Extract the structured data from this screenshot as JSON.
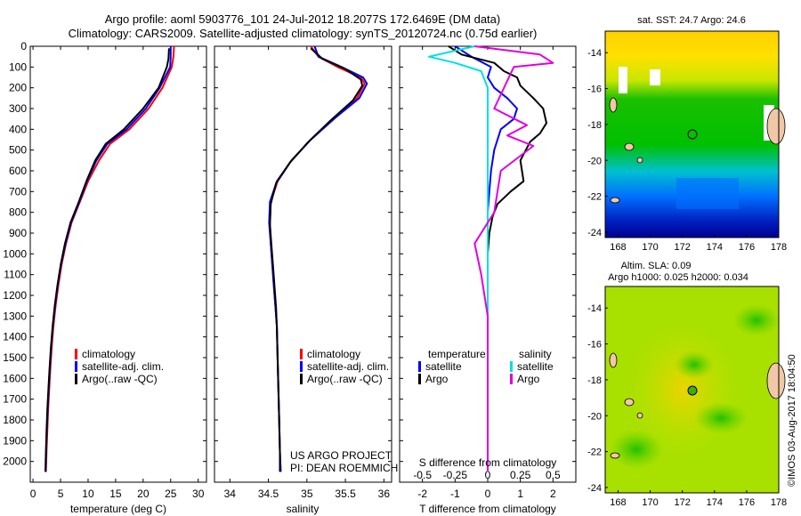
{
  "header": {
    "line1": "Argo profile: aoml 5903776_101 24-Jul-2012 18.2077S 172.6469E (DM data)",
    "line2": "Climatology: CARS2009. Satellite-adjusted climatology: synTS_20120724.nc (0.75d earlier)"
  },
  "colors": {
    "climatology": "#ff0000",
    "satellite": "#0000ff",
    "argo": "#000000",
    "argo_salinity": "#e000e0",
    "sat_salinity": "#00e0e0"
  },
  "chart_data": [
    {
      "id": "temperature",
      "type": "line",
      "xlabel": "temperature (deg C)",
      "ylabel": "",
      "xlim": [
        -0.5,
        31.5
      ],
      "ylim": [
        2100,
        0
      ],
      "xticks": [
        "0",
        "5",
        "10",
        "15",
        "20",
        "25",
        "30"
      ],
      "yticks": [
        "0",
        "100",
        "200",
        "300",
        "400",
        "500",
        "600",
        "700",
        "800",
        "900",
        "1000",
        "1100",
        "1200",
        "1300",
        "1400",
        "1500",
        "1600",
        "1700",
        "1800",
        "1900",
        "2000"
      ],
      "legend": [
        "climatology",
        "satellite-adj. clim.",
        "Argo(..raw -QC)"
      ],
      "series": [
        {
          "name": "climatology",
          "color": "#ff0000",
          "points": [
            [
              25.6,
              0
            ],
            [
              25.5,
              50
            ],
            [
              25.2,
              100
            ],
            [
              23.5,
              200
            ],
            [
              21,
              300
            ],
            [
              17.5,
              400
            ],
            [
              14,
              470
            ],
            [
              12,
              550
            ],
            [
              10,
              650
            ],
            [
              8.5,
              750
            ],
            [
              7,
              850
            ],
            [
              6,
              950
            ],
            [
              5.2,
              1050
            ],
            [
              4.6,
              1150
            ],
            [
              4.1,
              1250
            ],
            [
              3.7,
              1350
            ],
            [
              3.4,
              1450
            ],
            [
              3.15,
              1550
            ],
            [
              2.95,
              1650
            ],
            [
              2.75,
              1750
            ],
            [
              2.6,
              1850
            ],
            [
              2.45,
              1950
            ],
            [
              2.35,
              2050
            ]
          ]
        },
        {
          "name": "satellite",
          "color": "#0000ff",
          "points": [
            [
              25,
              0
            ],
            [
              25,
              50
            ],
            [
              24.9,
              100
            ],
            [
              23,
              200
            ],
            [
              20.5,
              300
            ],
            [
              17,
              400
            ],
            [
              13.5,
              470
            ],
            [
              11.5,
              550
            ],
            [
              9.8,
              650
            ],
            [
              8.4,
              750
            ],
            [
              6.9,
              850
            ],
            [
              5.9,
              950
            ],
            [
              5.1,
              1050
            ],
            [
              4.5,
              1150
            ],
            [
              4,
              1250
            ],
            [
              3.6,
              1350
            ],
            [
              3.3,
              1450
            ],
            [
              3.05,
              1550
            ],
            [
              2.85,
              1650
            ],
            [
              2.65,
              1750
            ],
            [
              2.5,
              1850
            ],
            [
              2.4,
              1950
            ],
            [
              2.3,
              2050
            ]
          ]
        },
        {
          "name": "Argo",
          "color": "#000000",
          "points": [
            [
              24.7,
              10
            ],
            [
              24.6,
              60
            ],
            [
              24.3,
              100
            ],
            [
              22.8,
              200
            ],
            [
              20,
              300
            ],
            [
              16.5,
              400
            ],
            [
              13.2,
              470
            ],
            [
              11.3,
              550
            ],
            [
              9.7,
              650
            ],
            [
              8.3,
              750
            ],
            [
              6.8,
              850
            ],
            [
              5.8,
              950
            ],
            [
              5.05,
              1050
            ],
            [
              4.45,
              1150
            ],
            [
              3.95,
              1250
            ],
            [
              3.55,
              1350
            ],
            [
              3.25,
              1450
            ],
            [
              3,
              1550
            ],
            [
              2.8,
              1650
            ],
            [
              2.6,
              1750
            ],
            [
              2.45,
              1850
            ],
            [
              2.35,
              1950
            ],
            [
              2.25,
              2050
            ]
          ]
        }
      ]
    },
    {
      "id": "salinity",
      "type": "line",
      "xlabel": "salinity",
      "ylabel": "",
      "xlim": [
        33.8,
        36.1
      ],
      "ylim": [
        2100,
        0
      ],
      "xticks": [
        "34",
        "34.5",
        "35",
        "35.5",
        "36"
      ],
      "legend": [
        "climatology",
        "satellite-adj. clim.",
        "Argo(..raw -QC)"
      ],
      "series": [
        {
          "name": "climatology",
          "color": "#ff0000",
          "points": [
            [
              35.05,
              0
            ],
            [
              35.15,
              50
            ],
            [
              35.4,
              100
            ],
            [
              35.7,
              150
            ],
            [
              35.75,
              180
            ],
            [
              35.65,
              250
            ],
            [
              35.35,
              350
            ],
            [
              35.05,
              450
            ],
            [
              34.8,
              550
            ],
            [
              34.62,
              650
            ],
            [
              34.53,
              750
            ],
            [
              34.52,
              850
            ],
            [
              34.53,
              950
            ],
            [
              34.55,
              1050
            ],
            [
              34.57,
              1150
            ],
            [
              34.59,
              1250
            ],
            [
              34.61,
              1350
            ],
            [
              34.62,
              1500
            ],
            [
              34.63,
              1650
            ],
            [
              34.64,
              1800
            ],
            [
              34.65,
              1950
            ],
            [
              34.66,
              2050
            ]
          ]
        },
        {
          "name": "satellite",
          "color": "#0000ff",
          "points": [
            [
              35.1,
              0
            ],
            [
              35.15,
              50
            ],
            [
              35.45,
              100
            ],
            [
              35.73,
              150
            ],
            [
              35.78,
              180
            ],
            [
              35.68,
              250
            ],
            [
              35.35,
              350
            ],
            [
              35.05,
              450
            ],
            [
              34.8,
              550
            ],
            [
              34.61,
              650
            ],
            [
              34.52,
              750
            ],
            [
              34.51,
              850
            ],
            [
              34.53,
              950
            ],
            [
              34.55,
              1050
            ],
            [
              34.57,
              1150
            ],
            [
              34.59,
              1250
            ],
            [
              34.61,
              1350
            ],
            [
              34.62,
              1500
            ],
            [
              34.63,
              1650
            ],
            [
              34.64,
              1800
            ],
            [
              34.65,
              1950
            ],
            [
              34.66,
              2050
            ]
          ]
        },
        {
          "name": "Argo",
          "color": "#000000",
          "points": [
            [
              35.05,
              10
            ],
            [
              35.2,
              60
            ],
            [
              35.5,
              110
            ],
            [
              35.7,
              160
            ],
            [
              35.72,
              190
            ],
            [
              35.6,
              260
            ],
            [
              35.3,
              360
            ],
            [
              35.02,
              460
            ],
            [
              34.78,
              560
            ],
            [
              34.6,
              660
            ],
            [
              34.53,
              760
            ],
            [
              34.52,
              860
            ],
            [
              34.54,
              960
            ],
            [
              34.56,
              1060
            ],
            [
              34.58,
              1160
            ],
            [
              34.6,
              1260
            ],
            [
              34.61,
              1360
            ],
            [
              34.62,
              1500
            ],
            [
              34.63,
              1650
            ],
            [
              34.64,
              1800
            ],
            [
              34.65,
              1950
            ],
            [
              34.65,
              2050
            ]
          ]
        }
      ]
    },
    {
      "id": "difference",
      "type": "line",
      "xlabel": "T difference from climatology",
      "top_axis_label": "S difference from climatology",
      "xlim": [
        -2.7,
        2.7
      ],
      "ylim": [
        2100,
        0
      ],
      "xticks": [
        "-2",
        "-1",
        "0",
        "1",
        "2"
      ],
      "top_ticks": [
        "-0.5",
        "-0.25",
        "0",
        "0.25",
        "0.5"
      ],
      "legend_titles": [
        "temperature",
        "salinity"
      ],
      "legend": [
        "satellite",
        "Argo",
        "satellite",
        "Argo"
      ],
      "series": [
        {
          "name": "T satellite",
          "color": "#0000ff",
          "points": [
            [
              -1,
              0
            ],
            [
              -0.5,
              50
            ],
            [
              0.1,
              100
            ],
            [
              0,
              150
            ],
            [
              0.2,
              200
            ],
            [
              0.6,
              250
            ],
            [
              0.9,
              300
            ],
            [
              0.8,
              350
            ],
            [
              0.4,
              400
            ],
            [
              0.2,
              500
            ],
            [
              0.1,
              600
            ],
            [
              0.05,
              700
            ],
            [
              0,
              800
            ],
            [
              0,
              900
            ],
            [
              0,
              1000
            ],
            [
              0,
              1200
            ],
            [
              0,
              1400
            ],
            [
              0,
              1600
            ],
            [
              0,
              2050
            ]
          ]
        },
        {
          "name": "T Argo",
          "color": "#000000",
          "points": [
            [
              -1.2,
              0
            ],
            [
              -0.8,
              40
            ],
            [
              0.2,
              80
            ],
            [
              0.5,
              120
            ],
            [
              0.9,
              150
            ],
            [
              1,
              190
            ],
            [
              1.4,
              250
            ],
            [
              1.7,
              300
            ],
            [
              1.8,
              370
            ],
            [
              1.6,
              420
            ],
            [
              1.3,
              460
            ],
            [
              1,
              550
            ],
            [
              1.1,
              650
            ],
            [
              0.7,
              700
            ],
            [
              0.3,
              760
            ],
            [
              0.15,
              820
            ],
            [
              0.05,
              900
            ],
            [
              0,
              1000
            ],
            [
              0,
              1200
            ],
            [
              0,
              1400
            ],
            [
              0,
              1600
            ],
            [
              0,
              2050
            ]
          ]
        },
        {
          "name": "S satellite",
          "color": "#00e0e0",
          "points": [
            [
              -0.1,
              0
            ],
            [
              -0.45,
              50
            ],
            [
              -0.25,
              80
            ],
            [
              -0.05,
              120
            ],
            [
              0,
              200
            ],
            [
              0,
              400
            ],
            [
              0,
              800
            ],
            [
              0,
              1200
            ],
            [
              0,
              1600
            ],
            [
              0,
              2050
            ]
          ]
        },
        {
          "name": "S Argo",
          "color": "#e000e0",
          "points": [
            [
              -0.1,
              0
            ],
            [
              0.4,
              40
            ],
            [
              0.5,
              80
            ],
            [
              0.2,
              100
            ],
            [
              0.05,
              300
            ],
            [
              0.3,
              380
            ],
            [
              0.15,
              430
            ],
            [
              0.35,
              480
            ],
            [
              0.1,
              600
            ],
            [
              0.05,
              800
            ],
            [
              -0.1,
              950
            ],
            [
              -0.05,
              1100
            ],
            [
              0,
              1300
            ],
            [
              0,
              1600
            ],
            [
              0,
              2050
            ]
          ]
        }
      ]
    }
  ],
  "maps": {
    "sst": {
      "title": "sat. SST: 24.7 Argo: 24.6",
      "yticks": [
        "-14",
        "-16",
        "-18",
        "-20",
        "-22",
        "-24"
      ],
      "xticks": [
        "168",
        "170",
        "172",
        "174",
        "176",
        "178"
      ]
    },
    "sla": {
      "title_line1": "Altim. SLA: 0.09",
      "title_line2": "Argo h1000: 0.025 h2000: 0.034",
      "yticks": [
        "-14",
        "-16",
        "-18",
        "-20",
        "-22",
        "-24"
      ],
      "xticks": [
        "168",
        "170",
        "172",
        "174",
        "176",
        "178"
      ]
    },
    "argo_position": {
      "lon": 172.6469,
      "lat": -18.2077
    }
  },
  "annotations": {
    "project_line1": "US ARGO PROJECT",
    "project_line2": "PI: DEAN ROEMMICH",
    "imos": "©IMOS 03-Aug-2017 18:04:50"
  }
}
